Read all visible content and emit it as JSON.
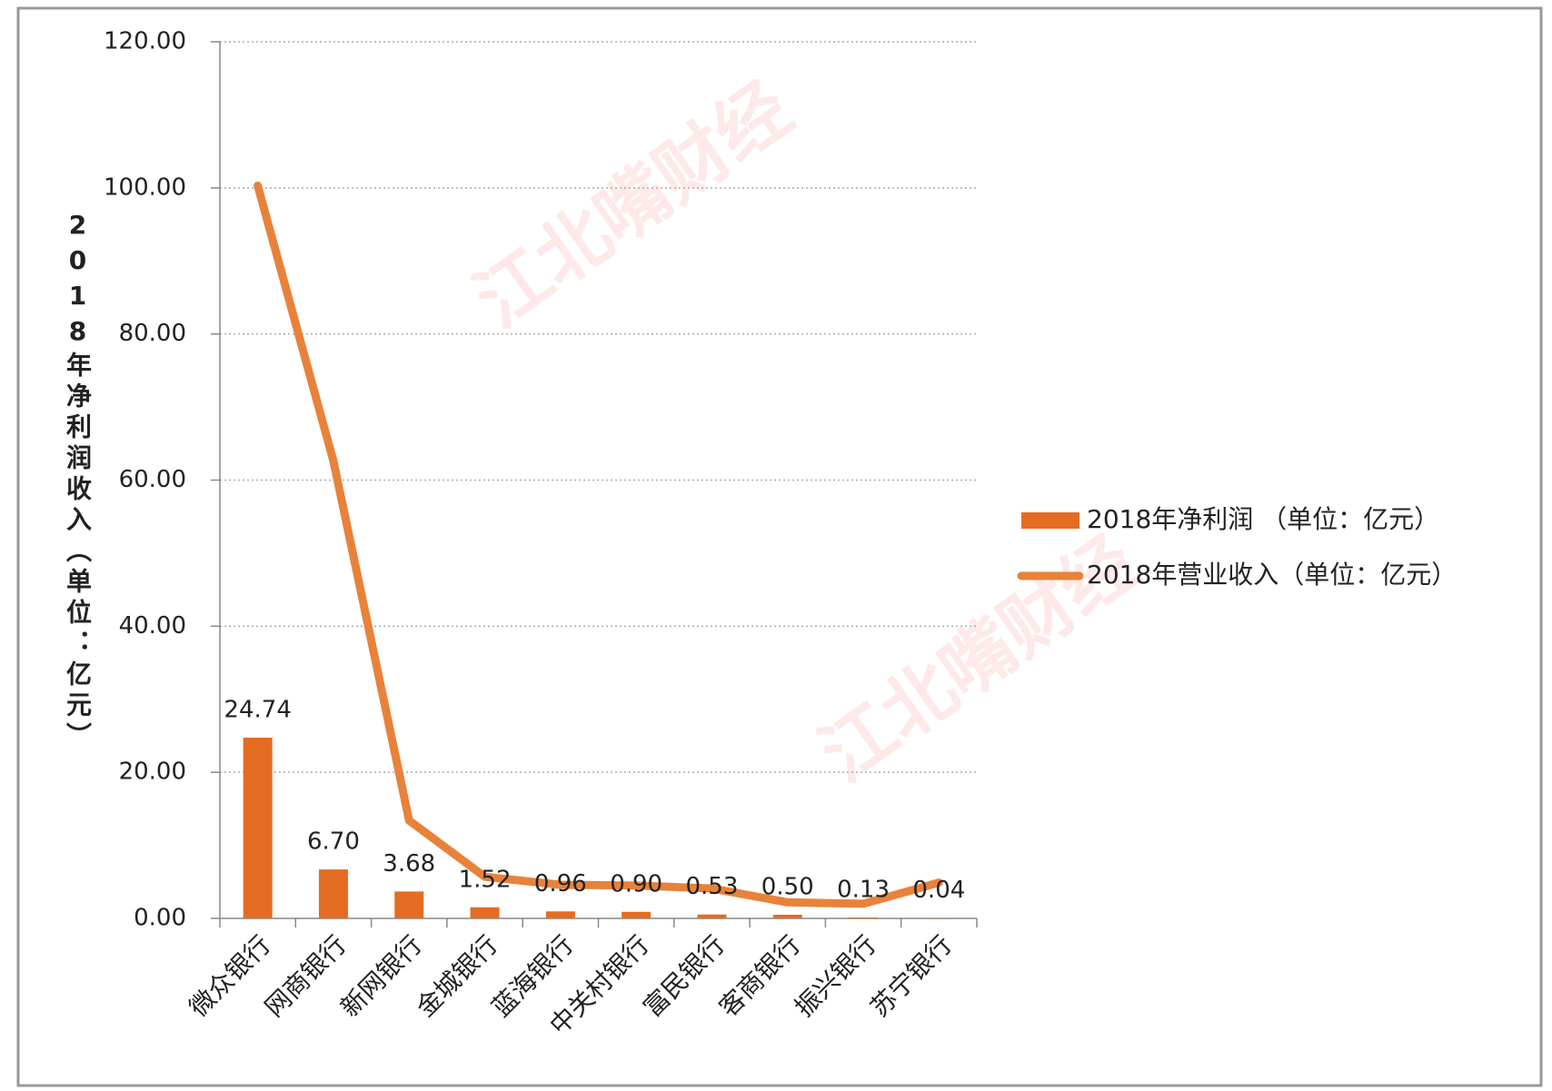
{
  "chart_data": {
    "type": "bar",
    "y_axis_label": "2018年净利润收入（单位：亿元）",
    "watermark": "江北嘴财经",
    "categories": [
      "微众银行",
      "网商银行",
      "新网银行",
      "金城银行",
      "蓝海银行",
      "中关村银行",
      "富民银行",
      "客商银行",
      "振兴银行",
      "苏宁银行"
    ],
    "series": [
      {
        "name": "2018年净利润 （单位：亿元）",
        "type": "bar",
        "color": "#e46c22",
        "values": [
          24.74,
          6.7,
          3.68,
          1.52,
          0.96,
          0.9,
          0.53,
          0.5,
          0.13,
          0.04
        ],
        "value_labels": [
          "24.74",
          "6.70",
          "3.68",
          "1.52",
          "0.96",
          "0.90",
          "0.53",
          "0.50",
          "0.13",
          "0.04"
        ]
      },
      {
        "name": "2018年营业收入（单位：亿元）",
        "type": "line",
        "color": "#e8823a",
        "values": [
          100.3,
          62.6,
          13.4,
          5.7,
          4.6,
          4.5,
          4.1,
          2.2,
          2.0,
          4.9
        ]
      }
    ],
    "ylim": [
      0,
      120
    ],
    "yticks": [
      {
        "value": 0,
        "label": "0.00"
      },
      {
        "value": 20,
        "label": "20.00"
      },
      {
        "value": 40,
        "label": "40.00"
      },
      {
        "value": 60,
        "label": "60.00"
      },
      {
        "value": 80,
        "label": "80.00"
      },
      {
        "value": 100,
        "label": "100.00"
      },
      {
        "value": 120,
        "label": "120.00"
      }
    ],
    "grid": true,
    "legend": "right"
  }
}
